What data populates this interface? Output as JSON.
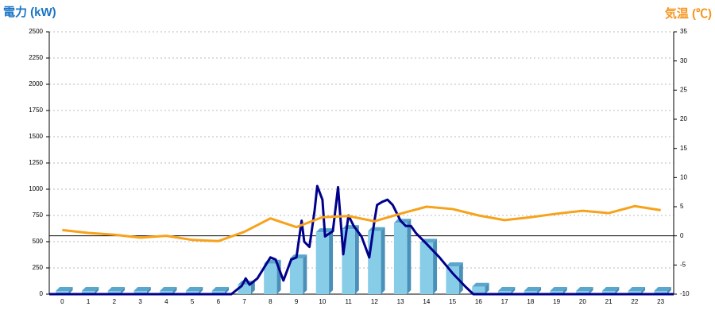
{
  "chart_data": {
    "type": "combo",
    "y_title": "電力 (kW)",
    "y2_title": "気温 (℃)",
    "categories": [
      "0",
      "1",
      "2",
      "3",
      "4",
      "5",
      "6",
      "7",
      "8",
      "9",
      "10",
      "11",
      "12",
      "13",
      "14",
      "15",
      "16",
      "17",
      "18",
      "19",
      "20",
      "21",
      "22",
      "23"
    ],
    "xlim": [
      -0.5,
      23.5
    ],
    "ylim": [
      0,
      2500
    ],
    "yticks": [
      0,
      250,
      500,
      750,
      1000,
      1250,
      1500,
      1750,
      2000,
      2250,
      2500
    ],
    "y2lim": [
      -10,
      35
    ],
    "y2ticks": [
      -10,
      -5,
      0,
      5,
      10,
      15,
      20,
      25,
      30,
      35
    ],
    "grid": true,
    "series": [
      {
        "type": "bar",
        "color": "#87cde8",
        "values": [
          30,
          30,
          30,
          30,
          30,
          30,
          30,
          90,
          290,
          340,
          590,
          620,
          600,
          680,
          490,
          265,
          70,
          30,
          30,
          30,
          30,
          30,
          30,
          30
        ]
      },
      {
        "type": "line",
        "color": "#00008b",
        "x": [
          -0.5,
          6.5,
          6.9,
          7.05,
          7.2,
          7.5,
          8,
          8.2,
          8.5,
          8.8,
          9,
          9.2,
          9.3,
          9.5,
          9.7,
          9.8,
          10,
          10.1,
          10.4,
          10.6,
          10.8,
          11,
          11.2,
          11.5,
          11.8,
          12,
          12.1,
          12.3,
          12.5,
          12.7,
          13,
          13.2,
          13.4,
          13.6,
          14,
          14.5,
          15,
          15.5,
          15.8,
          23.5
        ],
        "values": [
          0,
          0,
          80,
          150,
          90,
          150,
          350,
          330,
          130,
          330,
          350,
          700,
          500,
          450,
          800,
          1030,
          900,
          550,
          600,
          1020,
          380,
          750,
          650,
          550,
          350,
          700,
          850,
          880,
          900,
          850,
          700,
          650,
          650,
          580,
          480,
          350,
          200,
          70,
          0,
          0
        ]
      },
      {
        "type": "line",
        "axis": "y2",
        "color": "#f7a21b",
        "values": [
          1,
          0.5,
          0.2,
          -0.3,
          0,
          -0.7,
          -0.9,
          0.7,
          3,
          1.5,
          3.2,
          3.4,
          2.5,
          3.8,
          5,
          4.6,
          3.5,
          2.7,
          3.2,
          3.8,
          4.3,
          3.9,
          5.1,
          4.4
        ]
      }
    ]
  }
}
